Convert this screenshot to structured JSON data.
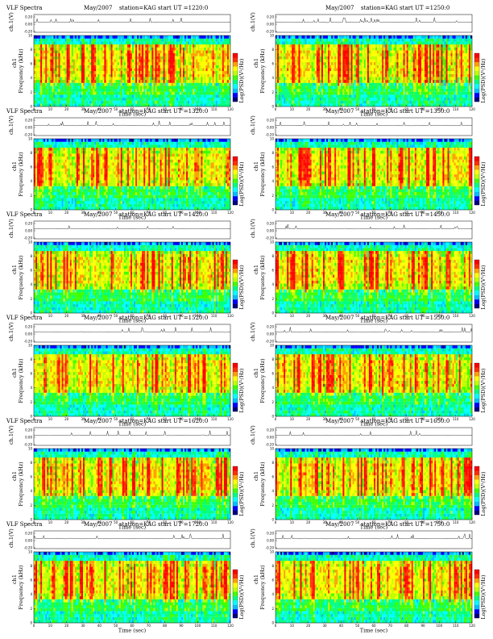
{
  "chart_data": [
    {
      "type": "heatmap",
      "title": "VLF Spectra",
      "date": "May/2007",
      "station": "station=KAG",
      "start": "start  UT  =1220:0",
      "xlabel": "Time  (sec)",
      "ylabel": "Frequency (kHz)",
      "ylabel_ch": "ch1",
      "ylabel_top": "ch.1(V)",
      "cbar_label": "Log(PSD)(V²/Hz)",
      "x_ticks": [
        0,
        10,
        20,
        30,
        40,
        50,
        60,
        70,
        80,
        90,
        100,
        110,
        120
      ],
      "y_ticks": [
        0,
        2,
        4,
        6,
        8,
        10
      ],
      "top_ticks": [
        "0.20",
        "0.00",
        "-0.20"
      ],
      "xlim": [
        0,
        120
      ],
      "ylim": [
        0,
        10
      ]
    },
    {
      "type": "heatmap",
      "title": "",
      "date": "May/2007",
      "station": "station=KAG",
      "start": "start  UT  =1250:0",
      "xlabel": "Time  (sec)",
      "ylabel": "Frequency (kHz)",
      "ylabel_ch": "ch1",
      "ylabel_top": "ch.1(V)",
      "cbar_label": "Log(PSD)(V²/Hz)",
      "x_ticks": [
        0,
        10,
        20,
        30,
        40,
        50,
        60,
        70,
        80,
        90,
        100,
        110,
        120
      ],
      "y_ticks": [
        0,
        2,
        4,
        6,
        8,
        10
      ],
      "top_ticks": [
        "0.20",
        "0.00",
        "-0.20"
      ],
      "xlim": [
        0,
        120
      ],
      "ylim": [
        0,
        10
      ]
    },
    {
      "type": "heatmap",
      "title": "VLF Spectra",
      "date": "May/2007",
      "station": "station=KAG",
      "start": "start  UT  =1320:0",
      "xlabel": "Time  (sec)",
      "ylabel": "Frequency (kHz)",
      "ylabel_ch": "ch1",
      "ylabel_top": "ch.1(V)",
      "cbar_label": "Log(PSD)(V²/Hz)",
      "x_ticks": [
        0,
        10,
        20,
        30,
        40,
        50,
        60,
        70,
        80,
        90,
        100,
        110,
        120
      ],
      "y_ticks": [
        0,
        2,
        4,
        6,
        8,
        10
      ],
      "top_ticks": [
        "0.20",
        "0.00",
        "-0.20"
      ],
      "xlim": [
        0,
        120
      ],
      "ylim": [
        0,
        10
      ]
    },
    {
      "type": "heatmap",
      "title": "",
      "date": "May/2007",
      "station": "station=KAG",
      "start": "start  UT  =1350:0",
      "xlabel": "Time  (sec)",
      "ylabel": "Frequency (kHz)",
      "ylabel_ch": "ch1",
      "ylabel_top": "ch.1(V)",
      "cbar_label": "Log(PSD)(V²/Hz)",
      "x_ticks": [
        0,
        10,
        20,
        30,
        40,
        50,
        60,
        70,
        80,
        90,
        100,
        110,
        120
      ],
      "y_ticks": [
        0,
        2,
        4,
        6,
        8,
        10
      ],
      "top_ticks": [
        "0.20",
        "0.00",
        "-0.20"
      ],
      "xlim": [
        0,
        120
      ],
      "ylim": [
        0,
        10
      ]
    },
    {
      "type": "heatmap",
      "title": "VLF Spectra",
      "date": "May/2007",
      "station": "station=KAG",
      "start": "start  UT  =1420:0",
      "xlabel": "Time  (sec)",
      "ylabel": "Frequency (kHz)",
      "ylabel_ch": "ch1",
      "ylabel_top": "ch.1(V)",
      "cbar_label": "Log(PSD)(V²/Hz)",
      "x_ticks": [
        0,
        10,
        20,
        30,
        40,
        50,
        60,
        70,
        80,
        90,
        100,
        110,
        120
      ],
      "y_ticks": [
        0,
        2,
        4,
        6,
        8,
        10
      ],
      "top_ticks": [
        "0.20",
        "0.00",
        "-0.20"
      ],
      "xlim": [
        0,
        120
      ],
      "ylim": [
        0,
        10
      ]
    },
    {
      "type": "heatmap",
      "title": "",
      "date": "May/2007",
      "station": "station=KAG",
      "start": "start  UT  =1450:0",
      "xlabel": "Time  (sec)",
      "ylabel": "Frequency (kHz)",
      "ylabel_ch": "ch1",
      "ylabel_top": "ch.1(V)",
      "cbar_label": "Log(PSD)(V²/Hz)",
      "x_ticks": [
        0,
        10,
        20,
        30,
        40,
        50,
        60,
        70,
        80,
        90,
        100,
        110,
        120
      ],
      "y_ticks": [
        0,
        2,
        4,
        6,
        8,
        10
      ],
      "top_ticks": [
        "0.20",
        "0.00",
        "-0.20"
      ],
      "xlim": [
        0,
        120
      ],
      "ylim": [
        0,
        10
      ]
    },
    {
      "type": "heatmap",
      "title": "VLF Spectra",
      "date": "May/2007",
      "station": "station=KAG",
      "start": "start  UT  =1520:0",
      "xlabel": "Time  (sec)",
      "ylabel": "Frequency (kHz)",
      "ylabel_ch": "ch1",
      "ylabel_top": "ch.1(V)",
      "cbar_label": "Log(PSD)(V²/Hz)",
      "x_ticks": [
        0,
        10,
        20,
        30,
        40,
        50,
        60,
        70,
        80,
        90,
        100,
        110,
        120
      ],
      "y_ticks": [
        0,
        2,
        4,
        6,
        8,
        10
      ],
      "top_ticks": [
        "0.20",
        "0.00",
        "-0.20"
      ],
      "xlim": [
        0,
        120
      ],
      "ylim": [
        0,
        10
      ]
    },
    {
      "type": "heatmap",
      "title": "",
      "date": "May/2007",
      "station": "station=KAG",
      "start": "start  UT  =1550:0",
      "xlabel": "Time  (sec)",
      "ylabel": "Frequency (kHz)",
      "ylabel_ch": "ch1",
      "ylabel_top": "ch.1(V)",
      "cbar_label": "Log(PSD)(V²/Hz)",
      "x_ticks": [
        0,
        10,
        20,
        30,
        40,
        50,
        60,
        70,
        80,
        90,
        100,
        110,
        120
      ],
      "y_ticks": [
        0,
        2,
        4,
        6,
        8,
        10
      ],
      "top_ticks": [
        "0.20",
        "0.00",
        "-0.20"
      ],
      "xlim": [
        0,
        120
      ],
      "ylim": [
        0,
        10
      ]
    },
    {
      "type": "heatmap",
      "title": "VLF Spectra",
      "date": "May/2007",
      "station": "station=KAG",
      "start": "start  UT  =1620:0",
      "xlabel": "Time  (sec)",
      "ylabel": "Frequency (kHz)",
      "ylabel_ch": "ch1",
      "ylabel_top": "ch.1(V)",
      "cbar_label": "Log(PSD)(V²/Hz)",
      "x_ticks": [
        0,
        10,
        20,
        30,
        40,
        50,
        60,
        70,
        80,
        90,
        100,
        110,
        120
      ],
      "y_ticks": [
        0,
        2,
        4,
        6,
        8,
        10
      ],
      "top_ticks": [
        "0.20",
        "0.00",
        "-0.20"
      ],
      "xlim": [
        0,
        120
      ],
      "ylim": [
        0,
        10
      ]
    },
    {
      "type": "heatmap",
      "title": "",
      "date": "May/2007",
      "station": "station=KAG",
      "start": "start  UT  =1650:0",
      "xlabel": "Time  (sec)",
      "ylabel": "Frequency (kHz)",
      "ylabel_ch": "ch1",
      "ylabel_top": "ch.1(V)",
      "cbar_label": "Log(PSD)(V²/Hz)",
      "x_ticks": [
        0,
        10,
        20,
        30,
        40,
        50,
        60,
        70,
        80,
        90,
        100,
        110,
        120
      ],
      "y_ticks": [
        0,
        2,
        4,
        6,
        8,
        10
      ],
      "top_ticks": [
        "0.20",
        "0.00",
        "-0.20"
      ],
      "xlim": [
        0,
        120
      ],
      "ylim": [
        0,
        10
      ]
    },
    {
      "type": "heatmap",
      "title": "VLF Spectra",
      "date": "May/2007",
      "station": "station=KAG",
      "start": "start  UT  =1720:0",
      "xlabel": "Time  (sec)",
      "ylabel": "Frequency (kHz)",
      "ylabel_ch": "ch1",
      "ylabel_top": "ch.1(V)",
      "cbar_label": "Log(PSD)(V²/Hz)",
      "x_ticks": [
        0,
        10,
        20,
        30,
        40,
        50,
        60,
        70,
        80,
        90,
        100,
        110,
        120
      ],
      "y_ticks": [
        0,
        2,
        4,
        6,
        8,
        10
      ],
      "top_ticks": [
        "0.20",
        "0.00",
        "-0.20"
      ],
      "xlim": [
        0,
        120
      ],
      "ylim": [
        0,
        10
      ]
    },
    {
      "type": "heatmap",
      "title": "",
      "date": "May/2007",
      "station": "station=KAG",
      "start": "start  UT  =1750:0",
      "xlabel": "Time  (sec)",
      "ylabel": "Frequency (kHz)",
      "ylabel_ch": "ch1",
      "ylabel_top": "ch.1(V)",
      "cbar_label": "Log(PSD)(V²/Hz)",
      "x_ticks": [
        0,
        10,
        20,
        30,
        40,
        50,
        60,
        70,
        80,
        90,
        100,
        110,
        120
      ],
      "y_ticks": [
        0,
        2,
        4,
        6,
        8,
        10
      ],
      "top_ticks": [
        "0.20",
        "0.00",
        "-0.20"
      ],
      "xlim": [
        0,
        120
      ],
      "ylim": [
        0,
        10
      ]
    }
  ],
  "colormap": [
    "#000080",
    "#0000ff",
    "#00c0ff",
    "#00ffff",
    "#00ff80",
    "#40ff00",
    "#c0ff00",
    "#ffff00",
    "#ffa000",
    "#ff3000",
    "#ff0000"
  ]
}
